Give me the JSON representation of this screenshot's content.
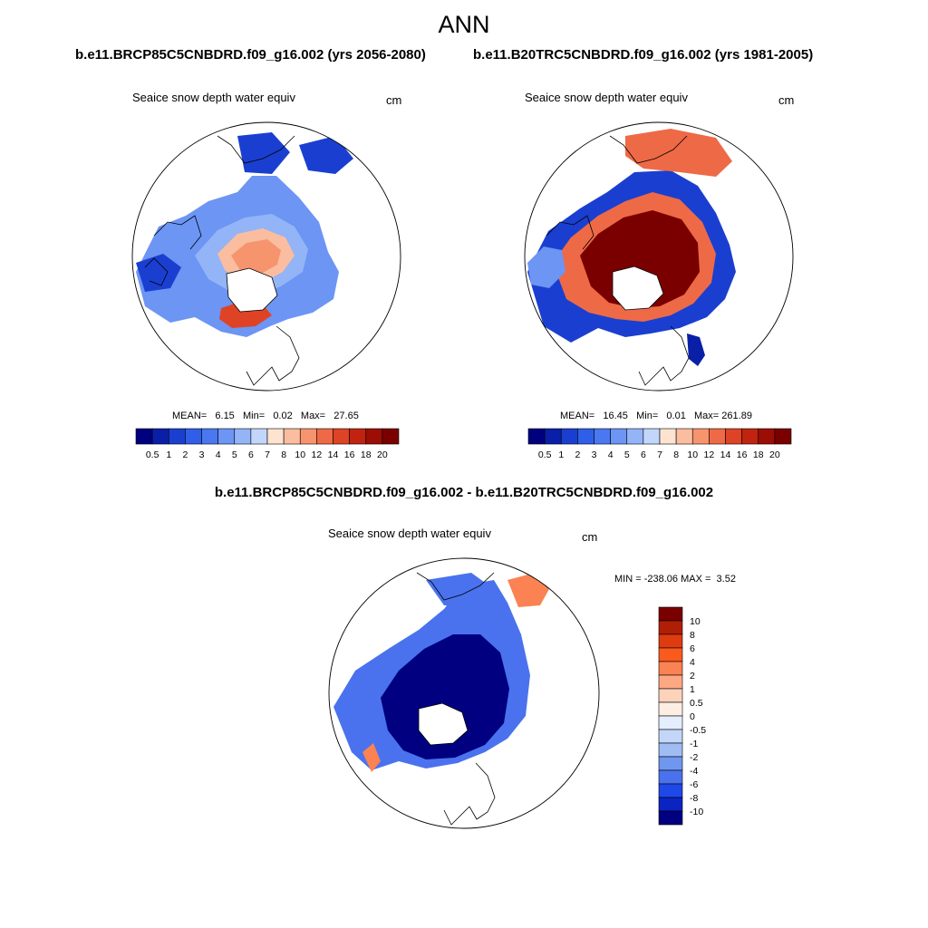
{
  "main_title": "ANN",
  "panel_left": {
    "case_title": "b.e11.BRCP85C5CNBDRD.f09_g16.002 (yrs 2056-2080)",
    "var_title": "Seaice snow depth water equiv",
    "units": "cm",
    "stats": {
      "mean_label": "MEAN=",
      "mean": "6.15",
      "min_label": "Min=",
      "min": "0.02",
      "max_label": "Max=",
      "max": "27.65"
    }
  },
  "panel_right": {
    "case_title": "b.e11.B20TRC5CNBDRD.f09_g16.002 (yrs 1981-2005)",
    "var_title": "Seaice snow depth water equiv",
    "units": "cm",
    "stats": {
      "mean_label": "MEAN=",
      "mean": "16.45",
      "min_label": "Min=",
      "min": "0.01",
      "max_label": "Max=",
      "max": "261.89"
    }
  },
  "panel_diff": {
    "title": "b.e11.BRCP85C5CNBDRD.f09_g16.002 - b.e11.B20TRC5CNBDRD.f09_g16.002",
    "var_title": "Seaice snow depth water equiv",
    "units": "cm",
    "minmax": {
      "min_label": "MIN =",
      "min": "-238.06",
      "max_label": "MAX =",
      "max": "3.52"
    }
  },
  "chart_data": [
    {
      "type": "heatmap",
      "projection": "north-polar-stereographic",
      "title": "Seaice snow depth water equiv",
      "units": "cm",
      "stats": {
        "mean": 6.15,
        "min": 0.02,
        "max": 27.65
      },
      "colorbar": {
        "levels": [
          "0.5",
          "1",
          "2",
          "3",
          "4",
          "5",
          "6",
          "7",
          "8",
          "10",
          "12",
          "14",
          "16",
          "18",
          "20"
        ],
        "colors": [
          "#00007f",
          "#0a1fa8",
          "#1a3fd0",
          "#2f5fe8",
          "#4a78f0",
          "#6c95f4",
          "#93b4f7",
          "#c2d6fb",
          "#fde3d0",
          "#fbbda0",
          "#f6946e",
          "#ee6a46",
          "#de4325",
          "#c02410",
          "#9c0d05",
          "#7a0000"
        ],
        "orientation": "horizontal"
      }
    },
    {
      "type": "heatmap",
      "projection": "north-polar-stereographic",
      "title": "Seaice snow depth water equiv",
      "units": "cm",
      "stats": {
        "mean": 16.45,
        "min": 0.01,
        "max": 261.89
      },
      "colorbar": {
        "levels": [
          "0.5",
          "1",
          "2",
          "3",
          "4",
          "5",
          "6",
          "7",
          "8",
          "10",
          "12",
          "14",
          "16",
          "18",
          "20"
        ],
        "colors": [
          "#00007f",
          "#0a1fa8",
          "#1a3fd0",
          "#2f5fe8",
          "#4a78f0",
          "#6c95f4",
          "#93b4f7",
          "#c2d6fb",
          "#fde3d0",
          "#fbbda0",
          "#f6946e",
          "#ee6a46",
          "#de4325",
          "#c02410",
          "#9c0d05",
          "#7a0000"
        ],
        "orientation": "horizontal"
      }
    },
    {
      "type": "heatmap",
      "projection": "north-polar-stereographic",
      "title": "Seaice snow depth water equiv",
      "units": "cm",
      "stats": {
        "min": -238.06,
        "max": 3.52
      },
      "colorbar": {
        "levels": [
          "10",
          "8",
          "6",
          "4",
          "2",
          "1",
          "0.5",
          "0",
          "-0.5",
          "-1",
          "-2",
          "-4",
          "-6",
          "-8",
          "-10"
        ],
        "colors": [
          "#7a0000",
          "#b01f05",
          "#de3b10",
          "#fa5a1e",
          "#fb8252",
          "#fda882",
          "#fdd2bb",
          "#fdeee4",
          "#e4eefc",
          "#c3d6f8",
          "#9fbcf5",
          "#6f97ef",
          "#4a72ee",
          "#1e48e8",
          "#0b23c2",
          "#000080"
        ],
        "orientation": "vertical"
      }
    }
  ]
}
